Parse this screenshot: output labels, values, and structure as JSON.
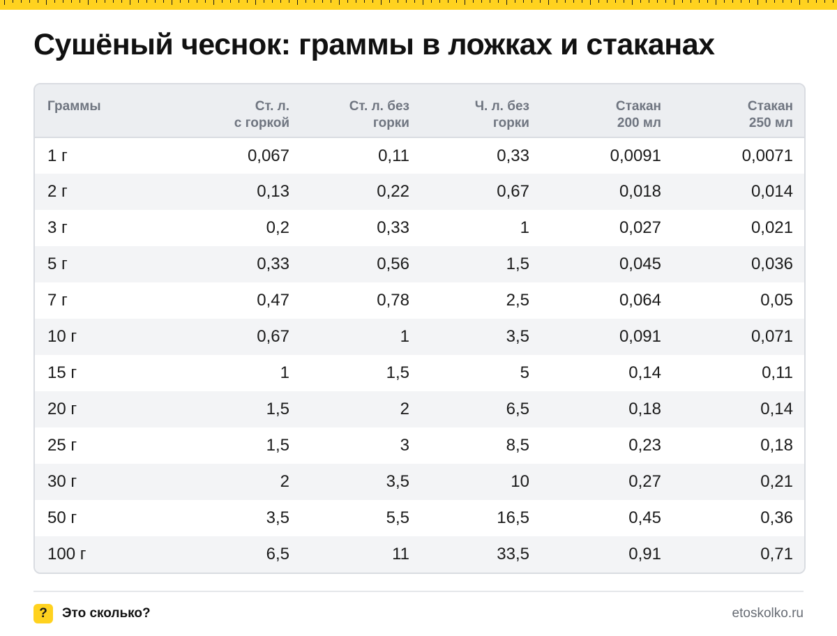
{
  "title": "Сушёный чеснок: граммы в ложках и стаканах",
  "colors": {
    "accent": "#ffd21f",
    "header_bg": "#eceef1",
    "stripe": "#f3f4f6",
    "border": "#d9dce1"
  },
  "table": {
    "headers": [
      [
        "Граммы"
      ],
      [
        "Ст. л.",
        "с горкой"
      ],
      [
        "Ст. л. без",
        "горки"
      ],
      [
        "Ч. л. без",
        "горки"
      ],
      [
        "Стакан",
        "200 мл"
      ],
      [
        "Стакан",
        "250 мл"
      ]
    ],
    "rows": [
      [
        "1 г",
        "0,067",
        "0,11",
        "0,33",
        "0,0091",
        "0,0071"
      ],
      [
        "2 г",
        "0,13",
        "0,22",
        "0,67",
        "0,018",
        "0,014"
      ],
      [
        "3 г",
        "0,2",
        "0,33",
        "1",
        "0,027",
        "0,021"
      ],
      [
        "5 г",
        "0,33",
        "0,56",
        "1,5",
        "0,045",
        "0,036"
      ],
      [
        "7 г",
        "0,47",
        "0,78",
        "2,5",
        "0,064",
        "0,05"
      ],
      [
        "10 г",
        "0,67",
        "1",
        "3,5",
        "0,091",
        "0,071"
      ],
      [
        "15 г",
        "1",
        "1,5",
        "5",
        "0,14",
        "0,11"
      ],
      [
        "20 г",
        "1,5",
        "2",
        "6,5",
        "0,18",
        "0,14"
      ],
      [
        "25 г",
        "1,5",
        "3",
        "8,5",
        "0,23",
        "0,18"
      ],
      [
        "30 г",
        "2",
        "3,5",
        "10",
        "0,27",
        "0,21"
      ],
      [
        "50 г",
        "3,5",
        "5,5",
        "16,5",
        "0,45",
        "0,36"
      ],
      [
        "100 г",
        "6,5",
        "11",
        "33,5",
        "0,91",
        "0,71"
      ]
    ]
  },
  "footer": {
    "icon": "question-mark-icon",
    "icon_glyph": "?",
    "brand": "Это сколько?",
    "site": "etoskolko.ru"
  }
}
